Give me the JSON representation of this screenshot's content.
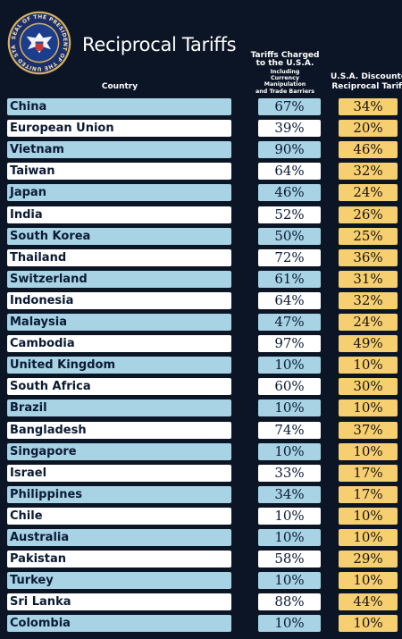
{
  "header": {
    "title": "Reciprocal Tariffs",
    "seal_text": "SEAL OF THE PRESIDENT OF THE UNITED STATES"
  },
  "chart_data": {
    "type": "table",
    "title": "Reciprocal Tariffs",
    "columns": [
      "Country",
      "Tariffs Charged to the U.S.A.",
      "U.S.A. Discounted Reciprocal Tariffs"
    ],
    "column_headers": {
      "country": "Country",
      "charged_line1": "Tariffs Charged",
      "charged_line2": "to the U.S.A.",
      "charged_note1": "Including",
      "charged_note2": "Currency Manipulation",
      "charged_note3": "and Trade Barriers",
      "recip_line1": "U.S.A. Discounted",
      "recip_line2": "Reciprocal Tariffs"
    },
    "rows": [
      {
        "country": "China",
        "charged": "67%",
        "reciprocal": "34%"
      },
      {
        "country": "European Union",
        "charged": "39%",
        "reciprocal": "20%"
      },
      {
        "country": "Vietnam",
        "charged": "90%",
        "reciprocal": "46%"
      },
      {
        "country": "Taiwan",
        "charged": "64%",
        "reciprocal": "32%"
      },
      {
        "country": "Japan",
        "charged": "46%",
        "reciprocal": "24%"
      },
      {
        "country": "India",
        "charged": "52%",
        "reciprocal": "26%"
      },
      {
        "country": "South Korea",
        "charged": "50%",
        "reciprocal": "25%"
      },
      {
        "country": "Thailand",
        "charged": "72%",
        "reciprocal": "36%"
      },
      {
        "country": "Switzerland",
        "charged": "61%",
        "reciprocal": "31%"
      },
      {
        "country": "Indonesia",
        "charged": "64%",
        "reciprocal": "32%"
      },
      {
        "country": "Malaysia",
        "charged": "47%",
        "reciprocal": "24%"
      },
      {
        "country": "Cambodia",
        "charged": "97%",
        "reciprocal": "49%"
      },
      {
        "country": "United Kingdom",
        "charged": "10%",
        "reciprocal": "10%"
      },
      {
        "country": "South Africa",
        "charged": "60%",
        "reciprocal": "30%"
      },
      {
        "country": "Brazil",
        "charged": "10%",
        "reciprocal": "10%"
      },
      {
        "country": "Bangladesh",
        "charged": "74%",
        "reciprocal": "37%"
      },
      {
        "country": "Singapore",
        "charged": "10%",
        "reciprocal": "10%"
      },
      {
        "country": "Israel",
        "charged": "33%",
        "reciprocal": "17%"
      },
      {
        "country": "Philippines",
        "charged": "34%",
        "reciprocal": "17%"
      },
      {
        "country": "Chile",
        "charged": "10%",
        "reciprocal": "10%"
      },
      {
        "country": "Australia",
        "charged": "10%",
        "reciprocal": "10%"
      },
      {
        "country": "Pakistan",
        "charged": "58%",
        "reciprocal": "29%"
      },
      {
        "country": "Turkey",
        "charged": "10%",
        "reciprocal": "10%"
      },
      {
        "country": "Sri Lanka",
        "charged": "88%",
        "reciprocal": "44%"
      },
      {
        "country": "Colombia",
        "charged": "10%",
        "reciprocal": "10%"
      }
    ]
  },
  "colors": {
    "background": "#0c1526",
    "row_blue": "#a7d3e4",
    "row_white": "#ffffff",
    "reciprocal_fill": "#f6cf71"
  }
}
